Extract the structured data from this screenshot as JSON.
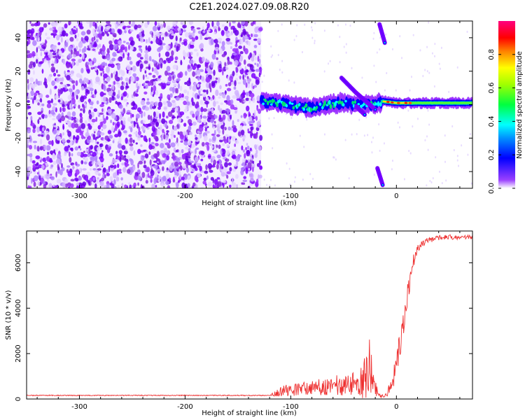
{
  "title": "C2E1.2024.027.09.08.R20",
  "chart_data": [
    {
      "type": "heatmap",
      "name": "spectrogram",
      "xlabel": "Height of straight line (km)",
      "ylabel": "Frequency (Hz)",
      "xlim": [
        -350,
        72
      ],
      "ylim": [
        -50,
        50
      ],
      "xticks": [
        -300,
        -200,
        -100,
        0
      ],
      "yticks": [
        -40,
        -20,
        0,
        20,
        40
      ],
      "xtick_labels": [
        "-300",
        "-200",
        "-100",
        "0"
      ],
      "ytick_labels": [
        "-40",
        "-20",
        "0",
        "20",
        "40"
      ],
      "noise_region_x": [
        -350,
        -128
      ],
      "signal_band": [
        {
          "x": -128,
          "y": 2
        },
        {
          "x": -110,
          "y": 1
        },
        {
          "x": -95,
          "y": -1
        },
        {
          "x": -80,
          "y": -2
        },
        {
          "x": -65,
          "y": 0
        },
        {
          "x": -50,
          "y": 1
        },
        {
          "x": -35,
          "y": 0
        },
        {
          "x": -20,
          "y": 0
        },
        {
          "x": -13,
          "y": 2
        },
        {
          "x": 0,
          "y": 1
        },
        {
          "x": 20,
          "y": 1
        },
        {
          "x": 40,
          "y": 1
        },
        {
          "x": 72,
          "y": 1
        }
      ],
      "dispersion_tracks": [
        [
          {
            "x": -52,
            "y": 16
          },
          {
            "x": -38,
            "y": 7
          },
          {
            "x": -27,
            "y": 1
          },
          {
            "x": -20,
            "y": -3
          }
        ],
        [
          {
            "x": -38,
            "y": -1
          },
          {
            "x": -30,
            "y": -6
          }
        ],
        [
          {
            "x": -16,
            "y": 48
          },
          {
            "x": -11,
            "y": 37
          }
        ],
        [
          {
            "x": -18,
            "y": -38
          },
          {
            "x": -13,
            "y": -48
          }
        ]
      ],
      "grid": false,
      "grid_color_scheme": "normalized spectral amplitude"
    },
    {
      "type": "colorbar",
      "label": "Normalized spectral amplitude",
      "range": [
        0.0,
        1.0
      ],
      "ticks": [
        "0.0",
        "0.2",
        "0.4",
        "0.6",
        "0.8"
      ],
      "colors": [
        "#ffffff",
        "#7a00ff",
        "#0000ff",
        "#00ffff",
        "#00ff00",
        "#ffff00",
        "#ff0000",
        "#ff0080"
      ]
    },
    {
      "type": "line",
      "name": "snr",
      "xlabel": "Height of straight line (km)",
      "ylabel": "SNR (10 * v/v)",
      "xlim": [
        -350,
        72
      ],
      "ylim": [
        0,
        7400
      ],
      "xticks": [
        -300,
        -200,
        -100,
        0
      ],
      "yticks": [
        0,
        2000,
        4000,
        6000
      ],
      "xtick_labels": [
        "-300",
        "-200",
        "-100",
        "0"
      ],
      "ytick_labels": [
        "0",
        "2000",
        "4000",
        "6000"
      ],
      "color": "#ee3030",
      "grid": false,
      "envelope": {
        "x": [
          -350,
          -120,
          -110,
          -100,
          -80,
          -60,
          -45,
          -35,
          -28,
          -24,
          -20,
          -15,
          -10,
          -5,
          0,
          5,
          10,
          15,
          20,
          25,
          30,
          40,
          50,
          60,
          72
        ],
        "base": [
          150,
          150,
          250,
          300,
          350,
          420,
          450,
          500,
          550,
          500,
          300,
          100,
          150,
          400,
          1200,
          2600,
          4200,
          5800,
          6500,
          6800,
          6950,
          7050,
          7100,
          7050,
          7100
        ],
        "amp": [
          40,
          40,
          450,
          550,
          650,
          850,
          1000,
          1200,
          2200,
          1300,
          700,
          150,
          200,
          700,
          1200,
          1200,
          1000,
          700,
          400,
          300,
          250,
          220,
          200,
          200,
          200
        ]
      }
    }
  ]
}
